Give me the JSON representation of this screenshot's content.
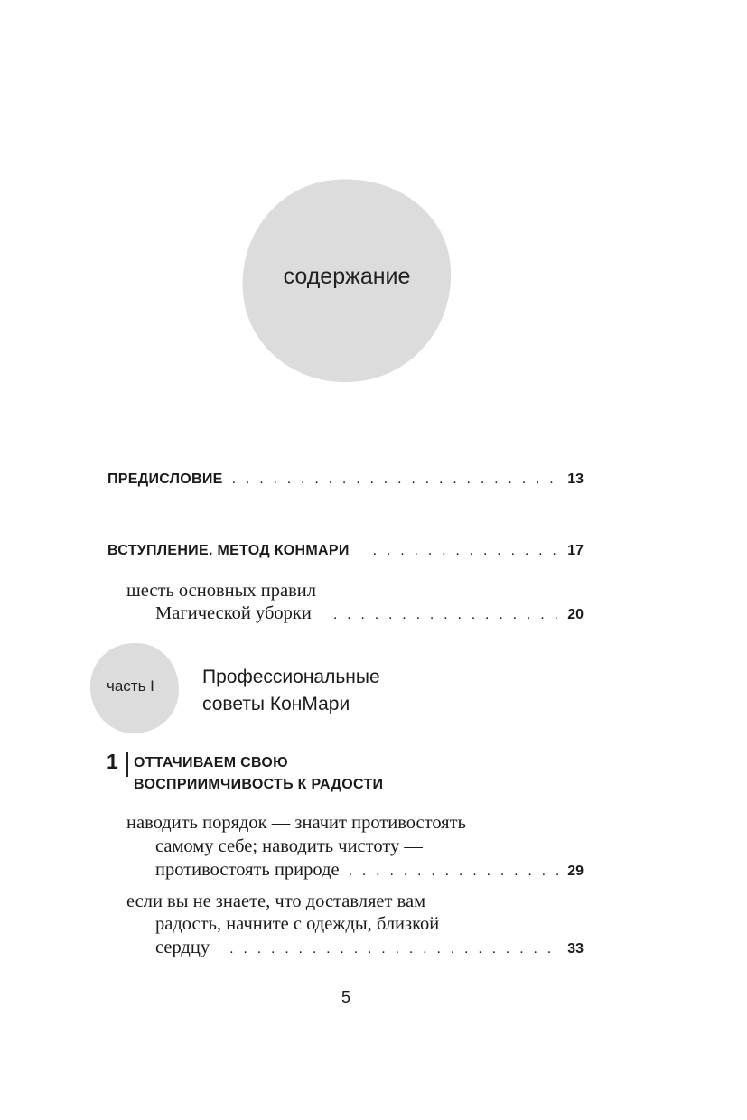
{
  "header": {
    "title": "содержание"
  },
  "entries": [
    {
      "title": "ПРЕДИСЛОВИЕ",
      "page": "13"
    },
    {
      "title": "ВСТУПЛЕНИЕ. МЕТОД КОНМАРИ",
      "page": "17"
    }
  ],
  "sub_entry_intro": {
    "line1": "шесть основных правил",
    "line2": "Магической уборки",
    "page": "20"
  },
  "part": {
    "label": "часть I",
    "title_line1": "Профессиональные",
    "title_line2": "советы КонМари"
  },
  "chapter": {
    "number": "1",
    "title_line1": "ОТТАЧИВАЕМ СВОЮ",
    "title_line2": "ВОСПРИИМЧИВОСТЬ К РАДОСТИ"
  },
  "chapter_entries": [
    {
      "line1": "наводить порядок — значит противостоять",
      "line2": "самому себе; наводить чистоту —",
      "line3": "противостоять природе",
      "page": "29"
    },
    {
      "line1": "если вы не знаете, что доставляет вам",
      "line2": "радость, начните с одежды, близкой",
      "line3": "сердцу",
      "page": "33"
    }
  ],
  "footer": {
    "page_number": "5"
  }
}
